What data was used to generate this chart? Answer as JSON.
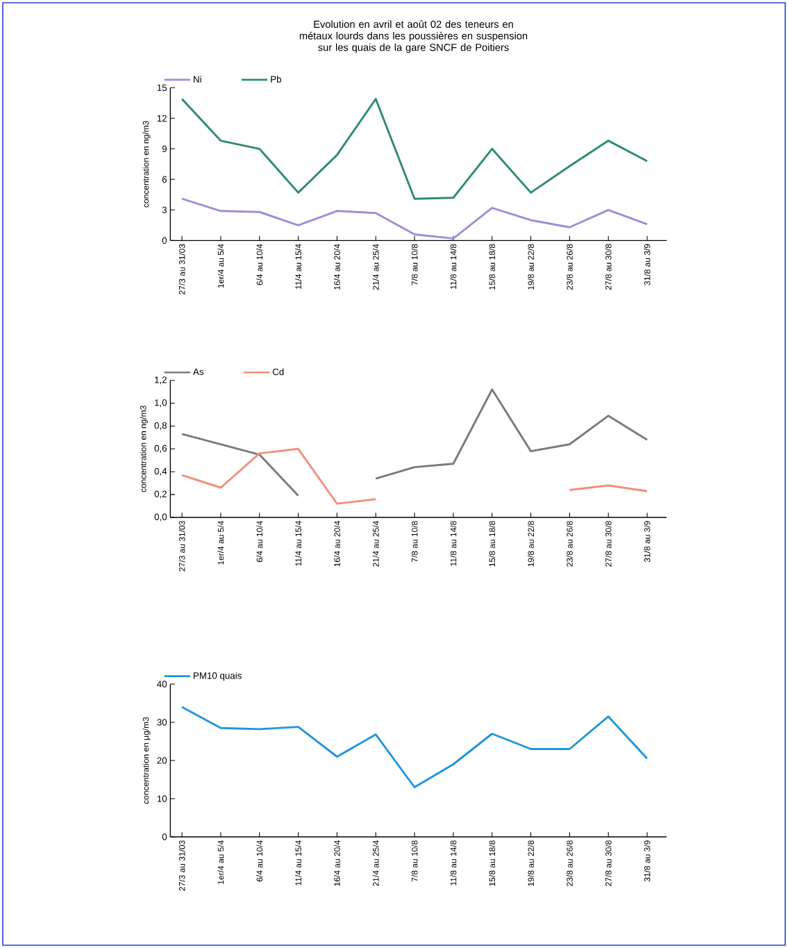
{
  "chart_data": [
    {
      "type": "line",
      "title": "Evolution en avril et août 02 des teneurs en métaux lourds dans les poussières en suspension sur les quais de la gare SNCF de Poitiers",
      "ylabel": "concentration en ng/m3",
      "categories": [
        "27/3 au 31/03",
        "1er/4 au 5/4",
        "6/4 au 10/4",
        "11/4 au 15/4",
        "16/4 au 20/4",
        "21/4 au 25/4",
        "7/8 au 10/8",
        "11/8 au 14/8",
        "15/8 au 18/8",
        "19/8 au 22/8",
        "23/8 au 26/8",
        "27/8 au 30/8",
        "31/8 au 3/9"
      ],
      "series": [
        {
          "name": "Ni",
          "color": "#9b8fd6",
          "values": [
            4.1,
            2.9,
            2.8,
            1.5,
            2.9,
            2.7,
            0.6,
            0.2,
            3.2,
            2.0,
            1.3,
            3.0,
            1.6
          ]
        },
        {
          "name": "Pb",
          "color": "#2e8b6e",
          "values": [
            13.9,
            9.8,
            9.0,
            4.7,
            8.4,
            13.9,
            4.1,
            4.2,
            9.0,
            4.7,
            7.3,
            9.8,
            7.8
          ]
        }
      ],
      "ylim": [
        0,
        15
      ],
      "yticks": [
        0,
        3,
        6,
        9,
        12,
        15
      ],
      "legend": "top left",
      "line_style": "solid",
      "marker": "none"
    },
    {
      "type": "line",
      "ylabel": "concentration en ng/m3",
      "categories": [
        "27/3 au 31/03",
        "1er/4 au 5/4",
        "6/4 au 10/4",
        "11/4 au 15/4",
        "16/4 au 20/4",
        "21/4 au 25/4",
        "7/8 au 10/8",
        "11/8 au 14/8",
        "15/8 au 18/8",
        "19/8 au 22/8",
        "23/8 au 26/8",
        "27/8 au 30/8",
        "31/8 au 3/9"
      ],
      "series": [
        {
          "name": "As",
          "color": "#7a7a7a",
          "values": [
            0.73,
            0.64,
            0.55,
            0.19,
            null,
            0.34,
            0.44,
            0.47,
            1.12,
            0.58,
            0.64,
            0.89,
            0.68
          ]
        },
        {
          "name": "Cd",
          "color": "#f0907a",
          "values": [
            0.37,
            0.26,
            0.56,
            0.6,
            0.12,
            0.16,
            null,
            null,
            null,
            null,
            0.24,
            0.28,
            0.23
          ]
        }
      ],
      "ylim": [
        0,
        1.2
      ],
      "yticks": [
        {
          "value": 0,
          "label": "0,0"
        },
        {
          "value": 0.2,
          "label": "0,2"
        },
        {
          "value": 0.4,
          "label": "0,4"
        },
        {
          "value": 0.6,
          "label": "0,6"
        },
        {
          "value": 0.8,
          "label": "0,8"
        },
        {
          "value": 1.0,
          "label": "1,0"
        },
        {
          "value": 1.2,
          "label": "1,2"
        }
      ],
      "legend": "top left",
      "line_style": "solid",
      "marker": "none"
    },
    {
      "type": "line",
      "ylabel": "concentration en µg/m3",
      "categories": [
        "27/3 au 31/03",
        "1er/4 au 5/4",
        "6/4 au 10/4",
        "11/4 au 15/4",
        "16/4 au 20/4",
        "21/4 au 25/4",
        "7/8 au 10/8",
        "11/8 au 14/8",
        "15/8 au 18/8",
        "19/8 au 22/8",
        "23/8 au 26/8",
        "27/8 au 30/8",
        "31/8 au 3/9"
      ],
      "series": [
        {
          "name": "PM10 quais",
          "color": "#1e96dc",
          "values": [
            34,
            28.5,
            28.2,
            28.8,
            21,
            26.8,
            13,
            19,
            27,
            23,
            23,
            31.5,
            20.5
          ]
        }
      ],
      "ylim": [
        0,
        40
      ],
      "yticks": [
        0,
        10,
        20,
        30,
        40
      ],
      "legend": "top left",
      "line_style": "solid",
      "marker": "none"
    }
  ]
}
